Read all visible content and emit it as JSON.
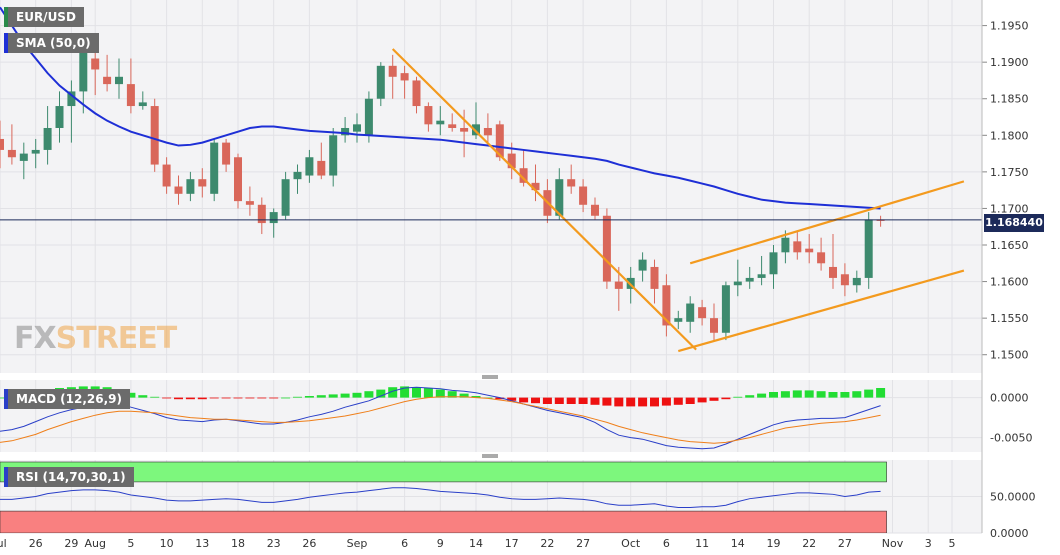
{
  "labels": {
    "symbol": "EUR/USD",
    "sma": "SMA (50,0)",
    "macd": "MACD (12,26,9)",
    "rsi": "RSI (14,70,30,1)",
    "current_price": "1.168440",
    "logo_fx": "FX",
    "logo_street": "STREET"
  },
  "colors": {
    "bull": "#3d8a6e",
    "bear": "#d9675a",
    "sma": "#1e2fd6",
    "trend": "#f39a1e",
    "macd_pos": "#22dd33",
    "macd_neg": "#ee1111",
    "macd_line": "#2a3fc8",
    "signal_line": "#ef7f1a",
    "rsi_line": "#2a3fc8",
    "rsi_overbought": "#7df77d",
    "rsi_oversold": "#f98080"
  },
  "chart_data": [
    {
      "type": "candlestick",
      "title": "EUR/USD",
      "ylim": [
        1.1475,
        1.1985
      ],
      "yticks": [
        "1.1950",
        "1.1900",
        "1.1850",
        "1.1800",
        "1.1750",
        "1.1700",
        "1.1650",
        "1.1600",
        "1.1550",
        "1.1500"
      ],
      "ytick_values": [
        1.195,
        1.19,
        1.185,
        1.18,
        1.175,
        1.17,
        1.165,
        1.16,
        1.155,
        1.15
      ],
      "xticks": [
        "Jul",
        "26",
        "29",
        "Aug",
        "5",
        "10",
        "13",
        "18",
        "23",
        "26",
        "Sep",
        "6",
        "9",
        "14",
        "17",
        "22",
        "27",
        "Oct",
        "6",
        "11",
        "14",
        "19",
        "22",
        "27",
        "Nov",
        "3",
        "5"
      ],
      "xtick_index": [
        0,
        3,
        6,
        8,
        11,
        14,
        17,
        20,
        23,
        26,
        30,
        34,
        37,
        40,
        43,
        46,
        49,
        53,
        56,
        59,
        62,
        65,
        68,
        71,
        75,
        78,
        80
      ],
      "ohlc": [
        [
          1.1795,
          1.182,
          1.1755,
          1.178
        ],
        [
          1.178,
          1.1815,
          1.176,
          1.177
        ],
        [
          1.1765,
          1.179,
          1.174,
          1.1775
        ],
        [
          1.1775,
          1.1795,
          1.1755,
          1.178
        ],
        [
          1.178,
          1.184,
          1.176,
          1.181
        ],
        [
          1.181,
          1.186,
          1.179,
          1.184
        ],
        [
          1.184,
          1.1875,
          1.179,
          1.186
        ],
        [
          1.186,
          1.192,
          1.183,
          1.1915
        ],
        [
          1.1905,
          1.192,
          1.1855,
          1.189
        ],
        [
          1.188,
          1.191,
          1.186,
          1.187
        ],
        [
          1.187,
          1.1905,
          1.185,
          1.188
        ],
        [
          1.187,
          1.1905,
          1.183,
          1.184
        ],
        [
          1.184,
          1.186,
          1.1835,
          1.1845
        ],
        [
          1.184,
          1.185,
          1.175,
          1.176
        ],
        [
          1.176,
          1.177,
          1.172,
          1.173
        ],
        [
          1.173,
          1.1745,
          1.1705,
          1.172
        ],
        [
          1.172,
          1.175,
          1.171,
          1.174
        ],
        [
          1.174,
          1.1755,
          1.1715,
          1.173
        ],
        [
          1.172,
          1.1795,
          1.171,
          1.179
        ],
        [
          1.179,
          1.1795,
          1.175,
          1.176
        ],
        [
          1.177,
          1.1775,
          1.17,
          1.171
        ],
        [
          1.171,
          1.173,
          1.169,
          1.1705
        ],
        [
          1.1705,
          1.1715,
          1.1665,
          1.168
        ],
        [
          1.168,
          1.17,
          1.166,
          1.1695
        ],
        [
          1.169,
          1.175,
          1.1685,
          1.174
        ],
        [
          1.174,
          1.176,
          1.172,
          1.175
        ],
        [
          1.1745,
          1.178,
          1.1735,
          1.177
        ],
        [
          1.1765,
          1.179,
          1.174,
          1.1745
        ],
        [
          1.1745,
          1.181,
          1.173,
          1.18
        ],
        [
          1.18,
          1.1825,
          1.179,
          1.181
        ],
        [
          1.1805,
          1.183,
          1.179,
          1.1815
        ],
        [
          1.18,
          1.186,
          1.179,
          1.185
        ],
        [
          1.185,
          1.19,
          1.184,
          1.1895
        ],
        [
          1.1895,
          1.191,
          1.185,
          1.188
        ],
        [
          1.1885,
          1.1895,
          1.185,
          1.1875
        ],
        [
          1.1875,
          1.188,
          1.183,
          1.184
        ],
        [
          1.184,
          1.1845,
          1.1805,
          1.1815
        ],
        [
          1.1815,
          1.184,
          1.18,
          1.182
        ],
        [
          1.1815,
          1.183,
          1.1805,
          1.181
        ],
        [
          1.181,
          1.1835,
          1.177,
          1.1805
        ],
        [
          1.18,
          1.1845,
          1.1795,
          1.1815
        ],
        [
          1.181,
          1.183,
          1.179,
          1.18
        ],
        [
          1.1815,
          1.182,
          1.1765,
          1.177
        ],
        [
          1.1775,
          1.179,
          1.174,
          1.1755
        ],
        [
          1.1755,
          1.178,
          1.173,
          1.1735
        ],
        [
          1.1735,
          1.176,
          1.171,
          1.1725
        ],
        [
          1.1725,
          1.174,
          1.168,
          1.169
        ],
        [
          1.169,
          1.1755,
          1.1685,
          1.174
        ],
        [
          1.174,
          1.176,
          1.172,
          1.173
        ],
        [
          1.173,
          1.174,
          1.1695,
          1.1705
        ],
        [
          1.1705,
          1.1715,
          1.1685,
          1.169
        ],
        [
          1.169,
          1.17,
          1.159,
          1.16
        ],
        [
          1.16,
          1.162,
          1.156,
          1.159
        ],
        [
          1.159,
          1.162,
          1.157,
          1.1605
        ],
        [
          1.1615,
          1.164,
          1.16,
          1.163
        ],
        [
          1.162,
          1.163,
          1.157,
          1.159
        ],
        [
          1.1595,
          1.161,
          1.1525,
          1.154
        ],
        [
          1.1545,
          1.156,
          1.1535,
          1.155
        ],
        [
          1.1545,
          1.158,
          1.153,
          1.157
        ],
        [
          1.1565,
          1.1575,
          1.154,
          1.155
        ],
        [
          1.155,
          1.157,
          1.152,
          1.153
        ],
        [
          1.153,
          1.16,
          1.152,
          1.1595
        ],
        [
          1.1595,
          1.163,
          1.158,
          1.16
        ],
        [
          1.16,
          1.162,
          1.159,
          1.1605
        ],
        [
          1.1605,
          1.1635,
          1.1595,
          1.161
        ],
        [
          1.161,
          1.165,
          1.159,
          1.164
        ],
        [
          1.164,
          1.167,
          1.1625,
          1.166
        ],
        [
          1.1655,
          1.167,
          1.163,
          1.164
        ],
        [
          1.1645,
          1.1665,
          1.1625,
          1.164
        ],
        [
          1.164,
          1.166,
          1.1615,
          1.1625
        ],
        [
          1.162,
          1.1665,
          1.159,
          1.1605
        ],
        [
          1.161,
          1.1625,
          1.158,
          1.1595
        ],
        [
          1.1595,
          1.1615,
          1.1585,
          1.1605
        ],
        [
          1.1605,
          1.1695,
          1.159,
          1.1685
        ],
        [
          1.1685,
          1.169,
          1.1675,
          1.1684
        ]
      ],
      "sma_50": [
        1.1975,
        1.195,
        1.1925,
        1.1905,
        1.1885,
        1.1868,
        1.1855,
        1.1842,
        1.183,
        1.182,
        1.1812,
        1.1805,
        1.18,
        1.1795,
        1.179,
        1.1786,
        1.1787,
        1.179,
        1.1795,
        1.18,
        1.1805,
        1.181,
        1.1812,
        1.1812,
        1.181,
        1.1808,
        1.1806,
        1.1805,
        1.1804,
        1.1803,
        1.1801,
        1.18,
        1.1799,
        1.1798,
        1.1797,
        1.1796,
        1.1795,
        1.1794,
        1.1792,
        1.179,
        1.1788,
        1.1786,
        1.1784,
        1.1782,
        1.178,
        1.1778,
        1.1776,
        1.1774,
        1.1772,
        1.177,
        1.1768,
        1.1765,
        1.176,
        1.1756,
        1.1752,
        1.1748,
        1.1745,
        1.1742,
        1.1738,
        1.1734,
        1.173,
        1.1725,
        1.172,
        1.1716,
        1.1712,
        1.171,
        1.1708,
        1.1707,
        1.1706,
        1.1705,
        1.1704,
        1.1703,
        1.1702,
        1.1701,
        1.17
      ],
      "trendlines": [
        {
          "x": [
            33,
            58.5
          ],
          "y": [
            1.1918,
            1.1507
          ]
        },
        {
          "x": [
            57,
            81
          ],
          "y": [
            1.1505,
            1.1615
          ]
        },
        {
          "x": [
            58,
            81
          ],
          "y": [
            1.1625,
            1.1737
          ]
        }
      ]
    },
    {
      "type": "bar",
      "title": "MACD (12,26,9)",
      "ylim": [
        -0.0068,
        0.0022
      ],
      "yticks": [
        "0.0000",
        "-0.0050"
      ],
      "ytick_values": [
        0.0,
        -0.005
      ],
      "histogram": [
        0.0,
        0.0003,
        0.0005,
        0.0008,
        0.001,
        0.0012,
        0.0013,
        0.0014,
        0.0014,
        0.0013,
        0.001,
        0.0006,
        0.0003,
        0.0001,
        -0.0001,
        -0.0002,
        -0.0002,
        -0.0002,
        -0.0001,
        -0.0001,
        -0.0001,
        -0.0001,
        -0.0001,
        -0.0001,
        0.0,
        0.0001,
        0.0002,
        0.0003,
        0.0004,
        0.0005,
        0.0006,
        0.0008,
        0.001,
        0.0013,
        0.0014,
        0.0013,
        0.0012,
        0.001,
        0.0008,
        0.0005,
        0.0002,
        0.0,
        -0.0002,
        -0.0004,
        -0.0006,
        -0.0007,
        -0.0008,
        -0.0008,
        -0.0008,
        -0.0008,
        -0.0009,
        -0.001,
        -0.0011,
        -0.0011,
        -0.0011,
        -0.0011,
        -0.001,
        -0.0009,
        -0.0008,
        -0.0006,
        -0.0004,
        -0.0002,
        0.0001,
        0.0003,
        0.0005,
        0.0007,
        0.0008,
        0.0009,
        0.0009,
        0.0008,
        0.0007,
        0.0007,
        0.0008,
        0.001,
        0.0012
      ],
      "macd": [
        -0.0042,
        -0.004,
        -0.0036,
        -0.003,
        -0.0024,
        -0.0019,
        -0.0015,
        -0.0012,
        -0.0009,
        -0.0008,
        -0.0008,
        -0.0012,
        -0.0016,
        -0.002,
        -0.0025,
        -0.0028,
        -0.0029,
        -0.003,
        -0.0028,
        -0.0027,
        -0.0029,
        -0.0031,
        -0.0033,
        -0.0033,
        -0.0031,
        -0.0028,
        -0.0024,
        -0.0021,
        -0.0017,
        -0.0012,
        -0.0008,
        -0.0004,
        0.0002,
        0.0008,
        0.0012,
        0.0013,
        0.0012,
        0.0011,
        0.0009,
        0.0008,
        0.0006,
        0.0003,
        0.0,
        -0.0004,
        -0.0008,
        -0.0012,
        -0.0016,
        -0.0019,
        -0.0022,
        -0.0025,
        -0.0031,
        -0.004,
        -0.0047,
        -0.005,
        -0.0052,
        -0.0056,
        -0.006,
        -0.0062,
        -0.0063,
        -0.0064,
        -0.0063,
        -0.0058,
        -0.0052,
        -0.0046,
        -0.004,
        -0.0034,
        -0.003,
        -0.0028,
        -0.0027,
        -0.0026,
        -0.0026,
        -0.0025,
        -0.002,
        -0.0015,
        -0.001
      ],
      "signal": [
        -0.0056,
        -0.0054,
        -0.005,
        -0.0046,
        -0.004,
        -0.0035,
        -0.003,
        -0.0026,
        -0.0022,
        -0.0019,
        -0.0017,
        -0.0017,
        -0.0018,
        -0.0019,
        -0.0021,
        -0.0023,
        -0.0025,
        -0.0026,
        -0.0027,
        -0.0027,
        -0.0028,
        -0.0029,
        -0.003,
        -0.0031,
        -0.0031,
        -0.003,
        -0.0029,
        -0.0027,
        -0.0025,
        -0.0023,
        -0.002,
        -0.0017,
        -0.0013,
        -0.0009,
        -0.0005,
        -0.0002,
        0.0,
        0.0001,
        0.0001,
        0.0001,
        0.0,
        -0.0001,
        -0.0003,
        -0.0005,
        -0.0008,
        -0.0011,
        -0.0014,
        -0.0017,
        -0.002,
        -0.0023,
        -0.0027,
        -0.0031,
        -0.0036,
        -0.004,
        -0.0044,
        -0.0047,
        -0.005,
        -0.0053,
        -0.0055,
        -0.0056,
        -0.0057,
        -0.0056,
        -0.0053,
        -0.005,
        -0.0046,
        -0.0042,
        -0.0038,
        -0.0036,
        -0.0034,
        -0.0032,
        -0.0031,
        -0.003,
        -0.0028,
        -0.0025,
        -0.0022
      ]
    },
    {
      "type": "line",
      "title": "RSI (14,70,30,1)",
      "ylim": [
        0,
        100
      ],
      "yticks": [
        "50.0000",
        "0.0000"
      ],
      "ytick_values": [
        50,
        0
      ],
      "overbought": 70,
      "oversold": 30,
      "values": [
        46,
        46,
        48,
        50,
        54,
        56,
        58,
        59,
        59,
        58,
        56,
        52,
        50,
        48,
        45,
        44,
        44,
        45,
        46,
        47,
        46,
        44,
        42,
        42,
        44,
        46,
        49,
        51,
        53,
        55,
        56,
        58,
        60,
        62,
        62,
        61,
        59,
        57,
        56,
        55,
        54,
        52,
        49,
        47,
        46,
        46,
        47,
        48,
        47,
        46,
        44,
        40,
        38,
        38,
        39,
        40,
        37,
        35,
        35,
        36,
        36,
        38,
        43,
        47,
        49,
        51,
        53,
        55,
        55,
        54,
        53,
        50,
        52,
        56,
        57
      ]
    }
  ]
}
